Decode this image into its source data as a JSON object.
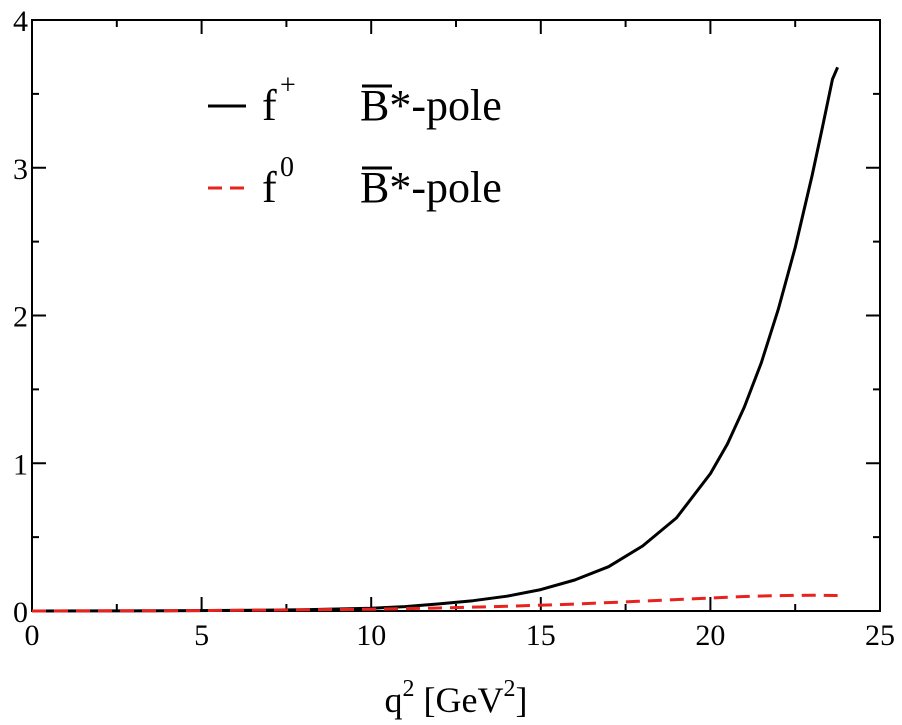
{
  "chart_data": {
    "type": "line",
    "title": "",
    "xlabel": {
      "base": "q",
      "sup": "2",
      "unit_open": " [GeV",
      "unit_sup": "2",
      "unit_close": "]"
    },
    "ylabel": "",
    "xlim": [
      0,
      25
    ],
    "ylim": [
      0,
      4
    ],
    "xticks": [
      0,
      5,
      10,
      15,
      20,
      25
    ],
    "yticks": [
      0,
      1,
      2,
      3,
      4
    ],
    "grid": false,
    "legend_position": "top-left",
    "series": [
      {
        "name": "f+ B̄*-pole",
        "legend": {
          "symbol": "f",
          "sup": "+",
          "pole": "B*-pole"
        },
        "color": "#000000",
        "dash": "solid",
        "x": [
          0,
          2,
          4,
          6,
          8,
          10,
          11,
          12,
          13,
          14,
          15,
          16,
          17,
          18,
          19,
          20,
          20.5,
          21,
          21.5,
          22,
          22.5,
          23,
          23.3,
          23.6,
          23.75
        ],
        "y": [
          0.0,
          0.001,
          0.002,
          0.004,
          0.008,
          0.018,
          0.03,
          0.048,
          0.07,
          0.1,
          0.145,
          0.21,
          0.3,
          0.44,
          0.63,
          0.93,
          1.13,
          1.38,
          1.68,
          2.04,
          2.46,
          2.95,
          3.27,
          3.6,
          3.68
        ]
      },
      {
        "name": "f0 B̄*-pole",
        "legend": {
          "symbol": "f",
          "sup": "0",
          "pole": "B*-pole"
        },
        "color": "#e8231e",
        "dash": "dashed",
        "x": [
          0,
          5,
          10,
          12,
          14,
          16,
          18,
          20,
          21,
          22,
          23,
          23.75
        ],
        "y": [
          0.0,
          0.003,
          0.012,
          0.02,
          0.032,
          0.047,
          0.067,
          0.088,
          0.098,
          0.104,
          0.107,
          0.105
        ]
      }
    ]
  }
}
